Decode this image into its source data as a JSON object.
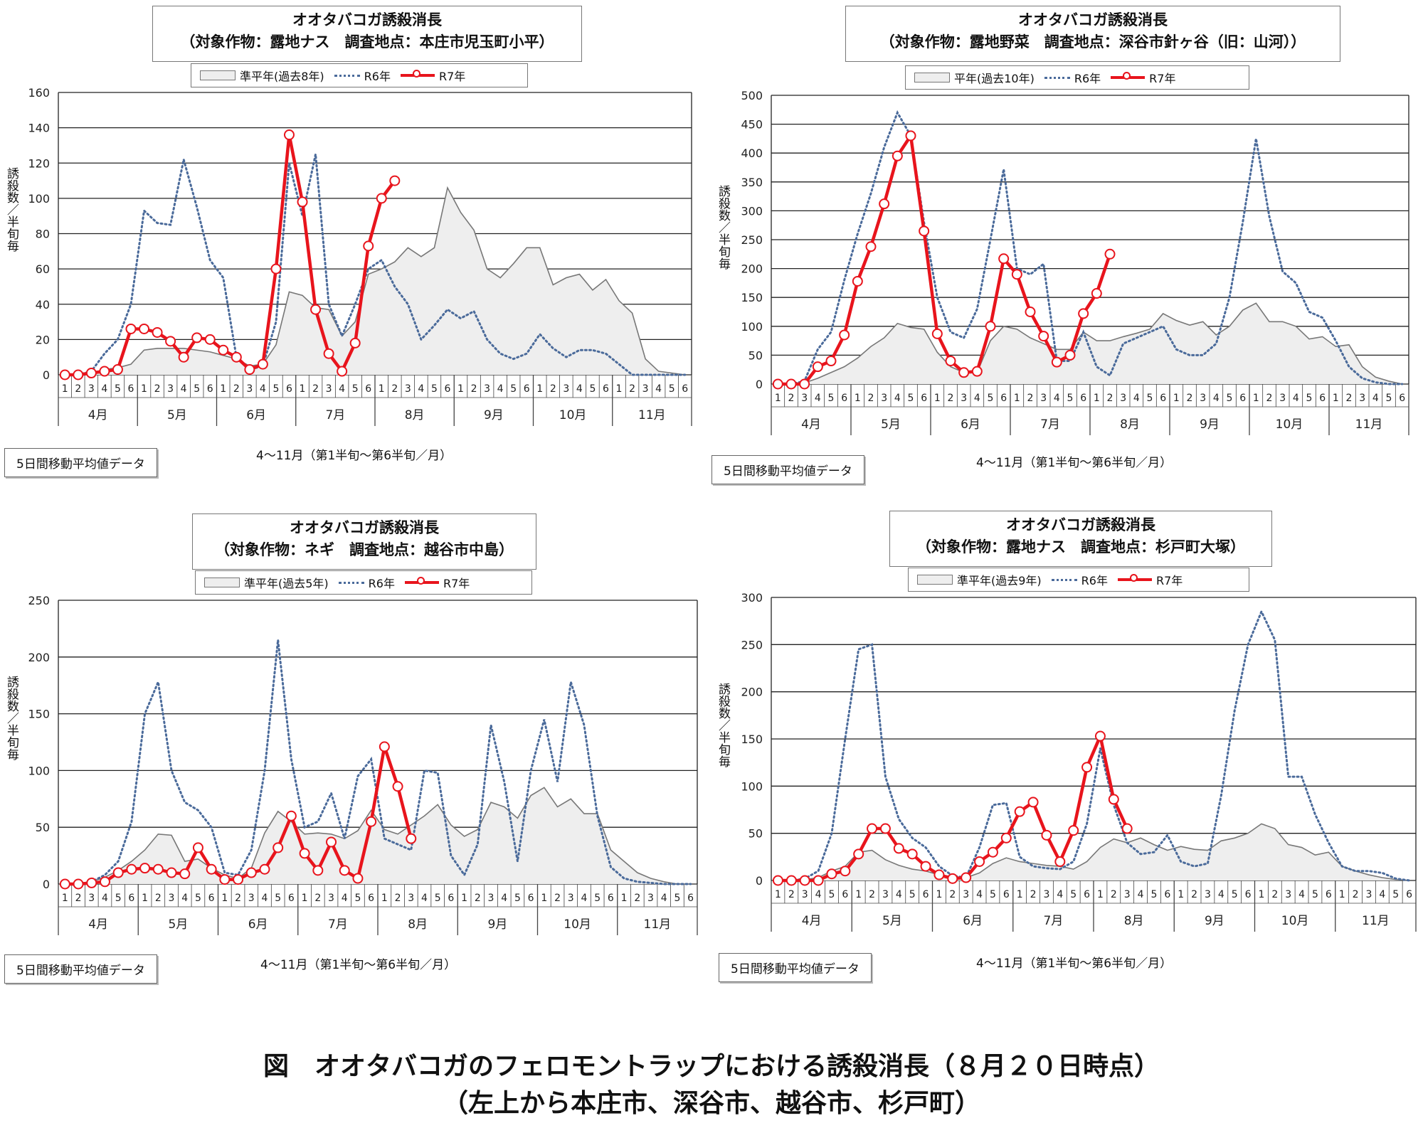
{
  "caption": {
    "line1": "図　オオタバコガのフェロモントラップにおける誘殺消長（８月２０日時点）",
    "line2": "（左上から本庄市、深谷市、越谷市、杉戸町）"
  },
  "common": {
    "ylabel": "誘殺数／半旬毎",
    "xcaption": "4～11月（第1半旬～第6半旬／月）",
    "note": "5日間移動平均値データ",
    "months": [
      "4月",
      "5月",
      "6月",
      "7月",
      "8月",
      "9月",
      "10月",
      "11月"
    ],
    "periods": [
      "1",
      "2",
      "3",
      "4",
      "5",
      "6"
    ],
    "legend_r6": "R6年",
    "legend_r7": "R7年",
    "colors": {
      "avg_fill": "#eeeeee",
      "avg_line": "#777777",
      "r6": "#4a6a9a",
      "r7": "#e8141c"
    }
  },
  "panels": [
    {
      "title1": "オオタバコガ誘殺消長",
      "title2": "（対象作物：露地ナス　調査地点：本庄市児玉町小平）",
      "legend_avg": "準平年(過去8年)"
    },
    {
      "title1": "オオタバコガ誘殺消長",
      "title2": "（対象作物：露地野菜　調査地点：深谷市針ヶ谷（旧：山河））",
      "legend_avg": "平年(過去10年)"
    },
    {
      "title1": "オオタバコガ誘殺消長",
      "title2": "（対象作物：ネギ　調査地点：越谷市中島）",
      "legend_avg": "準平年(過去5年)"
    },
    {
      "title1": "オオタバコガ誘殺消長",
      "title2": "（対象作物：露地ナス　調査地点：杉戸町大塚）",
      "legend_avg": "準平年(過去9年)"
    }
  ],
  "chart_data": [
    {
      "type": "line",
      "ylim": [
        0,
        160
      ],
      "yticks": [
        0,
        20,
        40,
        60,
        80,
        100,
        120,
        140,
        160
      ],
      "grid": true,
      "legend_position": "top",
      "series": [
        {
          "name": "準平年(過去8年)",
          "kind": "area",
          "values": [
            0,
            0,
            1,
            3,
            4,
            6,
            14,
            15,
            15,
            15,
            14,
            13,
            11,
            9,
            5,
            6,
            17,
            47,
            45,
            38,
            37,
            22,
            30,
            57,
            60,
            64,
            72,
            67,
            72,
            106,
            92,
            82,
            60,
            55,
            63,
            72,
            72,
            51,
            55,
            57,
            48,
            54,
            42,
            35,
            9,
            2,
            1,
            0
          ]
        },
        {
          "name": "R6年",
          "kind": "dotted",
          "values": [
            0,
            0,
            2,
            12,
            20,
            40,
            93,
            86,
            85,
            122,
            95,
            65,
            55,
            10,
            3,
            5,
            30,
            120,
            90,
            125,
            40,
            22,
            40,
            60,
            65,
            50,
            40,
            20,
            28,
            37,
            32,
            36,
            20,
            12,
            9,
            12,
            23,
            15,
            10,
            14,
            14,
            12,
            6,
            0,
            0,
            0,
            0,
            0
          ]
        },
        {
          "name": "R7年",
          "kind": "marker",
          "values": [
            0,
            0,
            1,
            2,
            3,
            26,
            26,
            24,
            19,
            10,
            21,
            20,
            14,
            10,
            3,
            6,
            60,
            136,
            98,
            37,
            12,
            2,
            18,
            73,
            100,
            110
          ]
        }
      ]
    },
    {
      "type": "line",
      "ylim": [
        0,
        500
      ],
      "yticks": [
        0,
        50,
        100,
        150,
        200,
        250,
        300,
        350,
        400,
        450,
        500
      ],
      "grid": true,
      "legend_position": "top",
      "series": [
        {
          "name": "平年(過去10年)",
          "kind": "area",
          "values": [
            0,
            0,
            2,
            10,
            20,
            30,
            45,
            65,
            80,
            105,
            98,
            95,
            55,
            30,
            20,
            20,
            75,
            100,
            95,
            80,
            70,
            60,
            60,
            90,
            75,
            75,
            82,
            88,
            95,
            122,
            110,
            102,
            108,
            85,
            100,
            128,
            140,
            108,
            108,
            100,
            78,
            82,
            65,
            68,
            30,
            12,
            5,
            0
          ]
        },
        {
          "name": "R6年",
          "kind": "dotted",
          "values": [
            0,
            0,
            5,
            60,
            90,
            180,
            260,
            330,
            410,
            470,
            430,
            280,
            150,
            90,
            80,
            130,
            250,
            372,
            200,
            190,
            208,
            40,
            40,
            90,
            30,
            15,
            70,
            80,
            90,
            100,
            60,
            50,
            50,
            70,
            150,
            280,
            425,
            290,
            195,
            175,
            125,
            115,
            75,
            30,
            10,
            3,
            0,
            0
          ]
        },
        {
          "name": "R7年",
          "kind": "marker",
          "values": [
            0,
            0,
            0,
            30,
            40,
            85,
            178,
            238,
            312,
            395,
            430,
            265,
            87,
            40,
            20,
            22,
            100,
            217,
            190,
            125,
            83,
            38,
            50,
            122,
            157,
            225
          ]
        }
      ]
    },
    {
      "type": "line",
      "ylim": [
        0,
        250
      ],
      "yticks": [
        0,
        50,
        100,
        150,
        200,
        250
      ],
      "grid": true,
      "legend_position": "top",
      "series": [
        {
          "name": "準平年(過去5年)",
          "kind": "area",
          "values": [
            0,
            0,
            2,
            6,
            12,
            20,
            30,
            44,
            43,
            20,
            22,
            14,
            8,
            5,
            14,
            45,
            64,
            55,
            44,
            45,
            44,
            40,
            47,
            65,
            48,
            44,
            52,
            60,
            70,
            52,
            42,
            48,
            72,
            68,
            58,
            78,
            85,
            68,
            75,
            62,
            62,
            30,
            20,
            10,
            5,
            2,
            0,
            0
          ]
        },
        {
          "name": "R6年",
          "kind": "dotted",
          "values": [
            0,
            0,
            2,
            8,
            20,
            55,
            150,
            178,
            100,
            72,
            65,
            50,
            10,
            8,
            30,
            100,
            215,
            110,
            50,
            55,
            80,
            40,
            95,
            110,
            40,
            35,
            30,
            100,
            98,
            25,
            8,
            35,
            140,
            90,
            20,
            100,
            145,
            90,
            178,
            140,
            60,
            15,
            5,
            2,
            1,
            0,
            0,
            0
          ]
        },
        {
          "name": "R7年",
          "kind": "marker",
          "values": [
            0,
            0,
            1,
            2,
            10,
            13,
            14,
            13,
            10,
            9,
            32,
            13,
            4,
            4,
            10,
            13,
            32,
            60,
            27,
            12,
            37,
            12,
            5,
            55,
            121,
            86,
            40
          ]
        }
      ]
    },
    {
      "type": "line",
      "ylim": [
        0,
        300
      ],
      "yticks": [
        0,
        50,
        100,
        150,
        200,
        250,
        300
      ],
      "grid": true,
      "legend_position": "top",
      "series": [
        {
          "name": "準平年(過去9年)",
          "kind": "area",
          "values": [
            0,
            0,
            1,
            3,
            10,
            15,
            30,
            32,
            22,
            16,
            12,
            10,
            6,
            4,
            3,
            8,
            18,
            24,
            20,
            18,
            16,
            15,
            12,
            20,
            35,
            44,
            40,
            45,
            38,
            32,
            36,
            33,
            32,
            42,
            45,
            50,
            60,
            55,
            38,
            35,
            27,
            30,
            15,
            10,
            6,
            3,
            1,
            0
          ]
        },
        {
          "name": "R6年",
          "kind": "dotted",
          "values": [
            0,
            0,
            2,
            10,
            50,
            150,
            245,
            250,
            110,
            65,
            45,
            35,
            15,
            5,
            3,
            35,
            80,
            82,
            25,
            15,
            13,
            12,
            20,
            60,
            140,
            80,
            40,
            28,
            30,
            48,
            20,
            15,
            18,
            90,
            180,
            250,
            285,
            255,
            110,
            110,
            70,
            40,
            15,
            10,
            10,
            8,
            2,
            0
          ]
        },
        {
          "name": "R7年",
          "kind": "marker",
          "values": [
            0,
            0,
            0,
            0,
            7,
            10,
            28,
            55,
            55,
            34,
            28,
            15,
            6,
            2,
            3,
            20,
            30,
            45,
            73,
            83,
            48,
            20,
            53,
            120,
            153,
            86,
            55
          ]
        }
      ]
    }
  ]
}
